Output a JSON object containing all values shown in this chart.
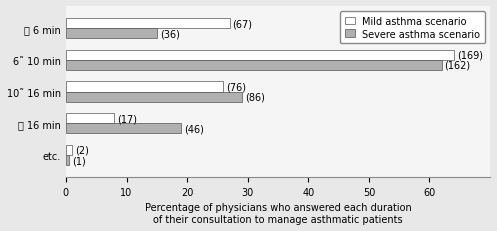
{
  "categories": [
    "젠 6 min",
    "6˜ 10 min",
    "10˜ 16 min",
    "젠 16 min",
    "etc."
  ],
  "mild_values": [
    27,
    64,
    26,
    8,
    1
  ],
  "severe_values": [
    15,
    62,
    29,
    19,
    0.5
  ],
  "mild_labels": [
    "(67)",
    "(169)",
    "(76)",
    "(17)",
    "(2)"
  ],
  "severe_labels": [
    "(36)",
    "(162)",
    "(86)",
    "(46)",
    "(1)"
  ],
  "mild_color": "#ffffff",
  "severe_color": "#b0b0b0",
  "edge_color": "#555555",
  "xlabel_line1": "Percentage of physicians who answered each duration",
  "xlabel_line2": "of their consultation to manage asthmatic patients",
  "legend_mild": "Mild asthma scenario",
  "legend_severe": "Severe asthma scenario",
  "xlim": [
    0,
    70
  ],
  "xticks": [
    0,
    10,
    20,
    30,
    40,
    50,
    60
  ],
  "bar_height": 0.32,
  "background_color": "#e8e8e8",
  "plot_bg_color": "#f5f5f5",
  "tick_fontsize": 7,
  "label_fontsize": 7,
  "legend_fontsize": 7,
  "xlabel_fontsize": 7
}
